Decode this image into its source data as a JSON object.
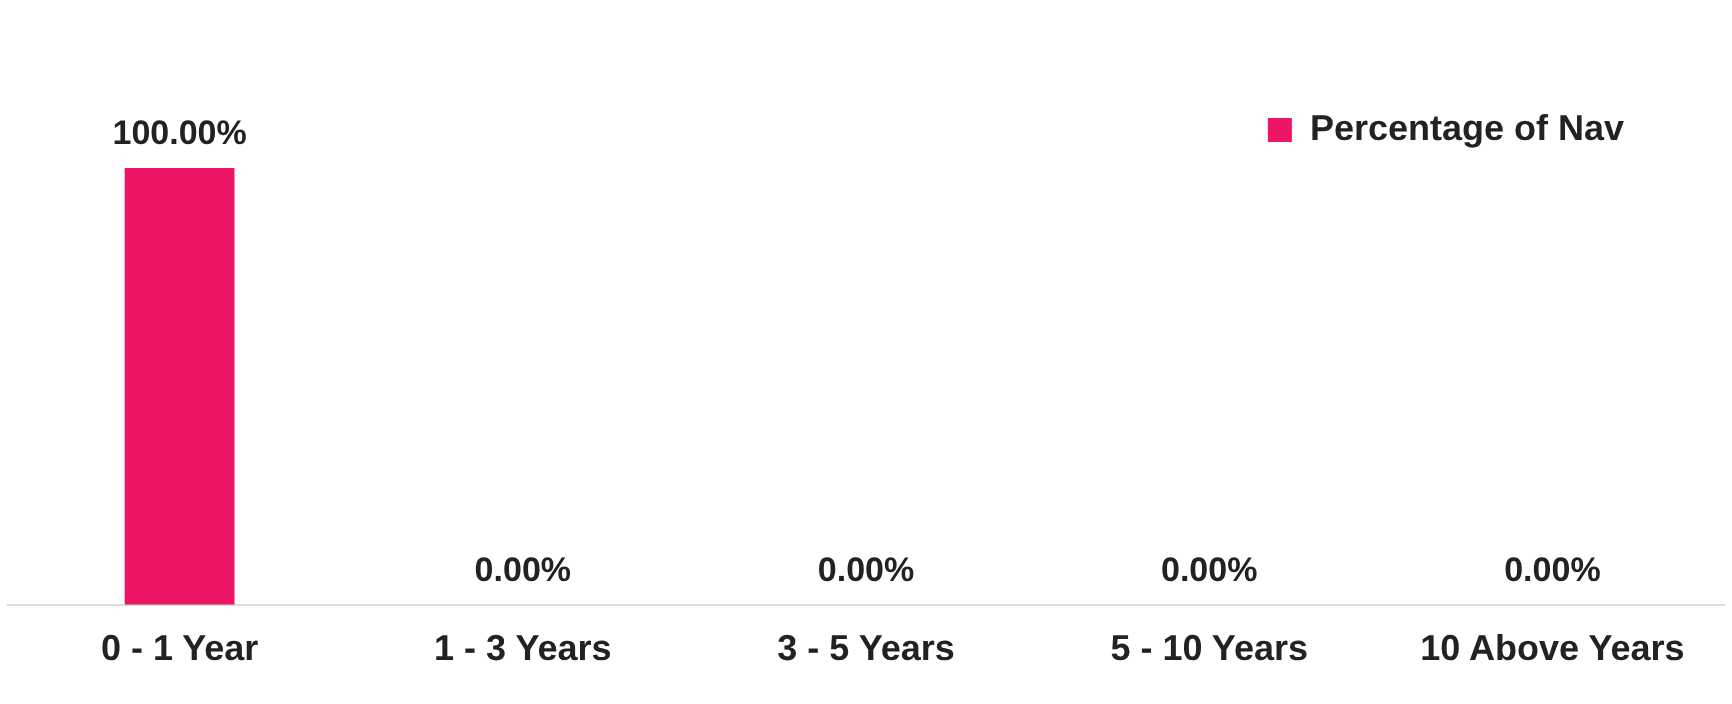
{
  "chart_data": {
    "type": "bar",
    "categories": [
      "0 - 1 Year",
      "1 - 3 Years",
      "3 - 5 Years",
      "5 - 10 Years",
      "10 Above Years"
    ],
    "series": [
      {
        "name": "Percentage of Nav",
        "color": "#ed1566",
        "values": [
          100,
          0,
          0,
          0,
          0
        ],
        "value_labels": [
          "100.00%",
          "0.00%",
          "0.00%",
          "0.00%",
          "0.00%"
        ]
      }
    ],
    "legend": "top right",
    "grid": false
  }
}
